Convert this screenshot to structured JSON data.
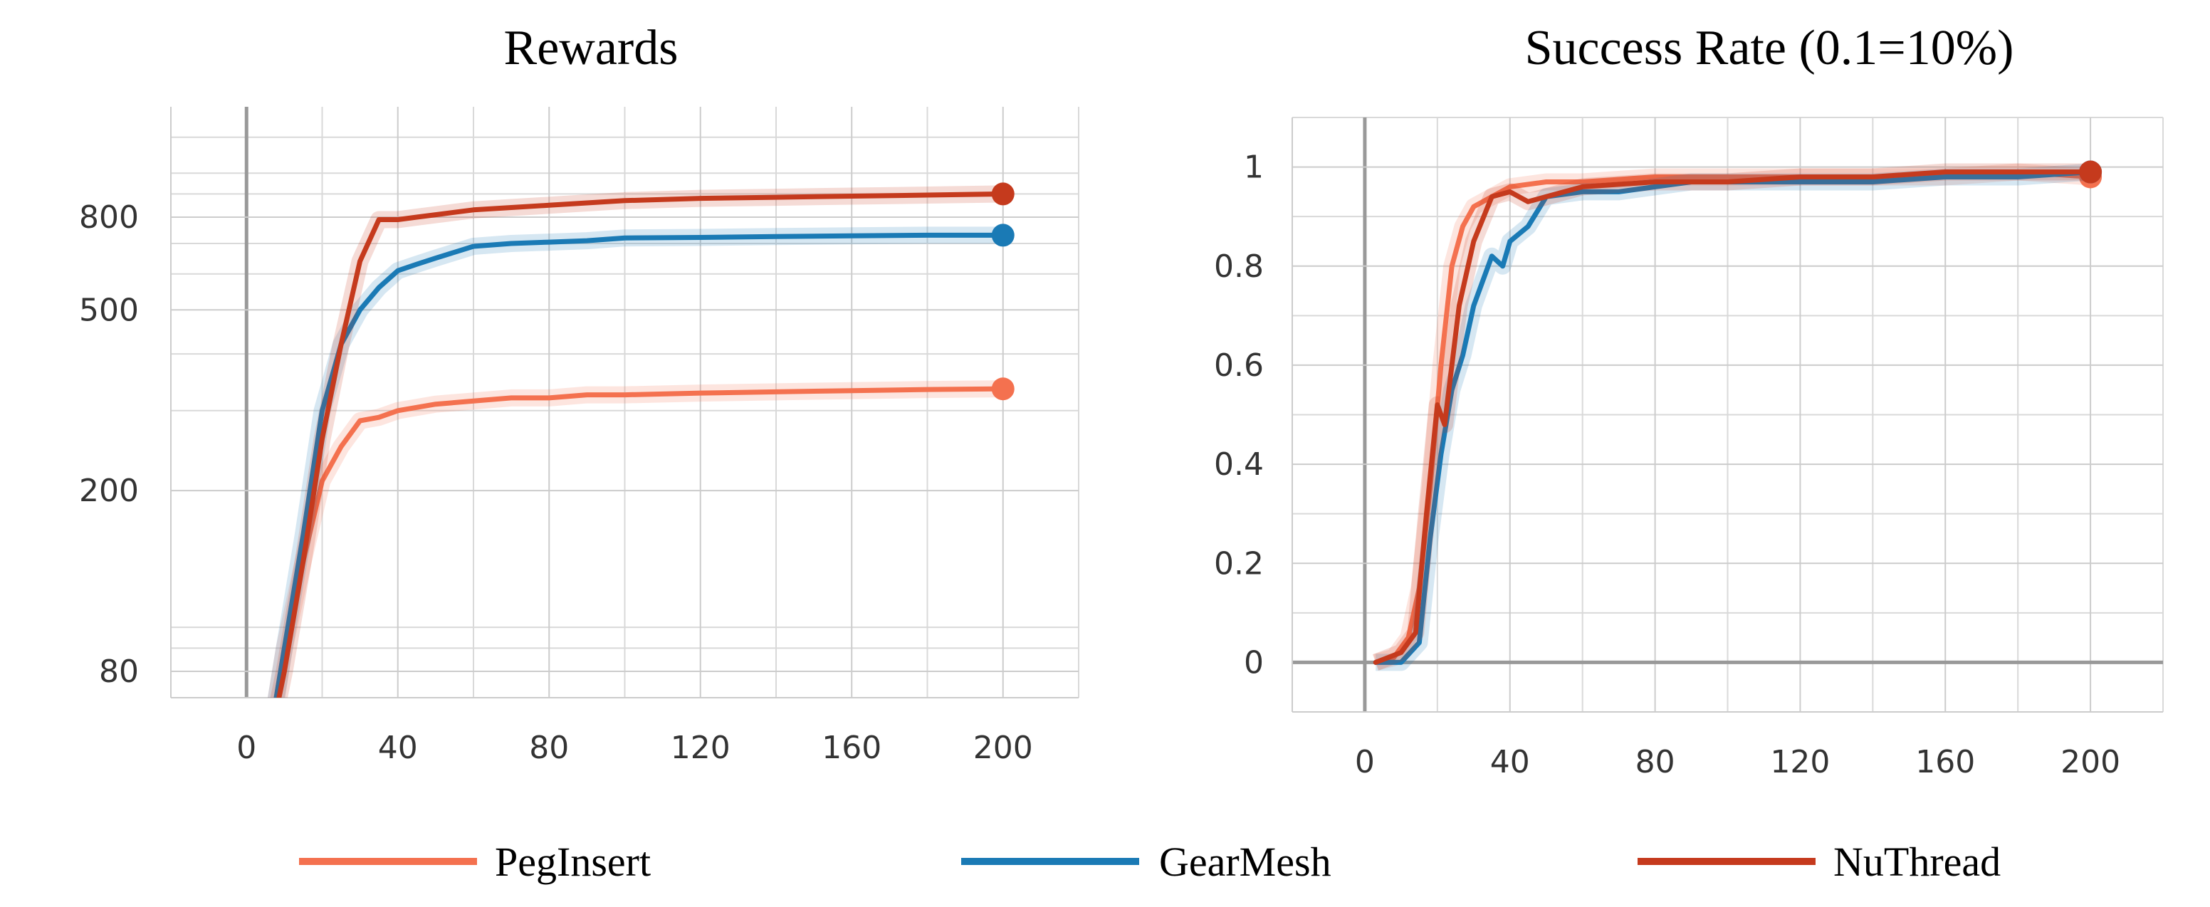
{
  "chart_data": [
    {
      "type": "line",
      "title": "Rewards",
      "y_scale": "log",
      "xlim": [
        -20,
        220
      ],
      "ylim": [
        70,
        1400
      ],
      "x_ticks": [
        0,
        40,
        80,
        120,
        160,
        200
      ],
      "y_ticks": [
        80,
        200,
        500,
        800
      ],
      "grid": true,
      "series": [
        {
          "name": "PegInsert",
          "color": "#f4714f",
          "x": [
            5,
            10,
            15,
            20,
            25,
            30,
            35,
            40,
            50,
            60,
            70,
            80,
            90,
            100,
            120,
            140,
            160,
            180,
            200
          ],
          "y": [
            50,
            90,
            140,
            210,
            250,
            285,
            290,
            300,
            310,
            315,
            320,
            320,
            325,
            325,
            328,
            330,
            332,
            334,
            335
          ]
        },
        {
          "name": "GearMesh",
          "color": "#1a7ab5",
          "x": [
            5,
            10,
            15,
            20,
            25,
            30,
            35,
            40,
            45,
            50,
            60,
            70,
            80,
            90,
            100,
            120,
            140,
            160,
            180,
            200
          ],
          "y": [
            50,
            90,
            160,
            300,
            420,
            500,
            560,
            610,
            630,
            650,
            690,
            700,
            705,
            710,
            720,
            722,
            725,
            728,
            730,
            730
          ]
        },
        {
          "name": "NuThread",
          "color": "#c53a1d",
          "x": [
            5,
            10,
            15,
            20,
            25,
            30,
            35,
            40,
            45,
            50,
            60,
            70,
            80,
            90,
            100,
            120,
            140,
            160,
            180,
            200
          ],
          "y": [
            50,
            80,
            140,
            260,
            420,
            640,
            790,
            790,
            800,
            810,
            830,
            840,
            850,
            860,
            870,
            880,
            885,
            890,
            895,
            900
          ]
        }
      ]
    },
    {
      "type": "line",
      "title": "Success Rate (0.1=10%)",
      "xlim": [
        -20,
        220
      ],
      "ylim": [
        -0.1,
        1.1
      ],
      "x_ticks": [
        0,
        40,
        80,
        120,
        160,
        200
      ],
      "y_ticks": [
        0,
        0.2,
        0.4,
        0.6,
        0.8,
        1
      ],
      "grid": true,
      "series": [
        {
          "name": "PegInsert",
          "color": "#f4714f",
          "x": [
            3,
            8,
            12,
            15,
            18,
            21,
            24,
            27,
            30,
            35,
            40,
            50,
            60,
            80,
            100,
            120,
            140,
            160,
            180,
            200
          ],
          "y": [
            0,
            0.01,
            0.05,
            0.15,
            0.35,
            0.6,
            0.8,
            0.88,
            0.92,
            0.94,
            0.96,
            0.97,
            0.97,
            0.98,
            0.98,
            0.98,
            0.98,
            0.98,
            0.99,
            0.98
          ]
        },
        {
          "name": "GearMesh",
          "color": "#1a7ab5",
          "x": [
            3,
            10,
            15,
            18,
            21,
            24,
            27,
            30,
            35,
            38,
            40,
            45,
            50,
            60,
            70,
            80,
            90,
            100,
            120,
            140,
            160,
            180,
            200
          ],
          "y": [
            0,
            0,
            0.04,
            0.25,
            0.42,
            0.55,
            0.62,
            0.72,
            0.82,
            0.8,
            0.85,
            0.88,
            0.94,
            0.95,
            0.95,
            0.96,
            0.97,
            0.97,
            0.97,
            0.97,
            0.98,
            0.98,
            0.99
          ]
        },
        {
          "name": "NuThread",
          "color": "#c53a1d",
          "x": [
            3,
            10,
            14,
            17,
            20,
            22,
            24,
            26,
            30,
            35,
            40,
            45,
            50,
            60,
            80,
            100,
            120,
            140,
            160,
            180,
            200
          ],
          "y": [
            0,
            0.02,
            0.06,
            0.3,
            0.52,
            0.48,
            0.6,
            0.72,
            0.85,
            0.94,
            0.95,
            0.93,
            0.94,
            0.96,
            0.97,
            0.97,
            0.98,
            0.98,
            0.99,
            0.99,
            0.99
          ]
        }
      ]
    }
  ],
  "legend": {
    "placement": "bottom",
    "items": [
      {
        "label": "PegInsert",
        "color": "#f4714f"
      },
      {
        "label": "GearMesh",
        "color": "#1a7ab5"
      },
      {
        "label": "NuThread",
        "color": "#c53a1d"
      }
    ]
  }
}
